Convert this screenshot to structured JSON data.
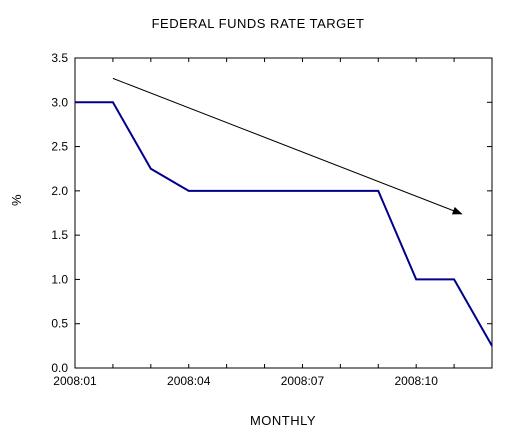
{
  "chart_data": {
    "type": "line",
    "title": "FEDERAL FUNDS RATE TARGET",
    "xlabel": "MONTHLY",
    "ylabel": "%",
    "x": [
      "2008:01",
      "2008:02",
      "2008:03",
      "2008:04",
      "2008:05",
      "2008:06",
      "2008:07",
      "2008:08",
      "2008:09",
      "2008:10",
      "2008:11",
      "2008:12"
    ],
    "x_tick_labels": [
      "2008:01",
      "2008:04",
      "2008:07",
      "2008:10"
    ],
    "y_tick_labels": [
      "0.0",
      "0.5",
      "1.0",
      "1.5",
      "2.0",
      "2.5",
      "3.0",
      "3.5"
    ],
    "ylim": [
      0,
      3.5
    ],
    "grid": false,
    "series": [
      {
        "values": [
          3.0,
          3.0,
          2.25,
          2.0,
          2.0,
          2.0,
          2.0,
          2.0,
          2.0,
          1.0,
          1.0,
          0.25
        ],
        "color": "#00008b"
      }
    ],
    "annotations": [
      {
        "type": "arrow",
        "from": {
          "x": 1,
          "y": 3.27
        },
        "to": {
          "x": 10.2,
          "y": 1.74
        },
        "color": "#000000"
      }
    ]
  }
}
